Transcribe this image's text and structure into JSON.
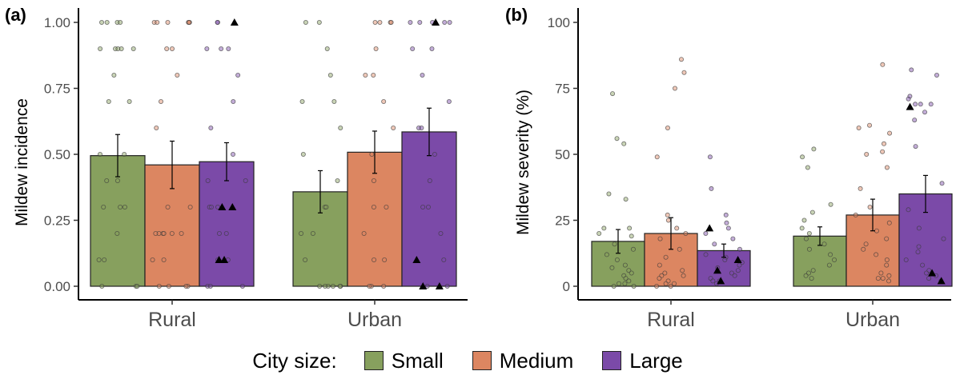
{
  "legend": {
    "title": "City size:",
    "items": [
      {
        "label": "Small",
        "color": "#87a05e"
      },
      {
        "label": "Medium",
        "color": "#dc8661"
      },
      {
        "label": "Large",
        "color": "#7b4aa8"
      }
    ]
  },
  "chart_data": [
    {
      "panel_label": "(a)",
      "type": "bar",
      "ylabel": "Mildew incidence",
      "xlabel": "",
      "ylim": [
        0,
        1.03
      ],
      "yticks": [
        0.0,
        0.25,
        0.5,
        0.75,
        1.0
      ],
      "ytick_labels": [
        "0.00",
        "0.25",
        "0.50",
        "0.75",
        "1.00"
      ],
      "categories": [
        "Rural",
        "Urban"
      ],
      "grid": false,
      "series": [
        {
          "name": "Small",
          "color": "#87a05e",
          "values": [
            0.495,
            0.358
          ],
          "error": [
            0.08,
            0.08
          ]
        },
        {
          "name": "Medium",
          "color": "#dc8661",
          "values": [
            0.46,
            0.508
          ],
          "error": [
            0.09,
            0.08
          ]
        },
        {
          "name": "Large",
          "color": "#7b4aa8",
          "values": [
            0.472,
            0.585
          ],
          "error": [
            0.072,
            0.09
          ]
        }
      ],
      "points": {
        "Rural": {
          "Small": [
            1.0,
            1.0,
            1.0,
            1.0,
            0.9,
            0.9,
            0.9,
            0.9,
            0.9,
            0.8,
            0.7,
            0.7,
            0.5,
            0.5,
            0.4,
            0.4,
            0.3,
            0.3,
            0.3,
            0.2,
            0.1,
            0.1,
            0.0,
            0.0,
            0.0
          ],
          "Medium": [
            1.0,
            1.0,
            1.0,
            1.0,
            1.0,
            1.0,
            0.9,
            0.9,
            0.8,
            0.7,
            0.6,
            0.3,
            0.3,
            0.2,
            0.2,
            0.2,
            0.2,
            0.2,
            0.2,
            0.1,
            0.1,
            0.0,
            0.0,
            0.0,
            0.0
          ],
          "Large": [
            1.0,
            1.0,
            0.9,
            0.9,
            0.9,
            0.8,
            0.7,
            0.6,
            0.5,
            0.4,
            0.4,
            0.3,
            0.3,
            0.3,
            0.2,
            0.2,
            0.1,
            0.1,
            0.0,
            0.0,
            0.0
          ]
        },
        "Urban": {
          "Small": [
            1.0,
            1.0,
            0.9,
            0.8,
            0.7,
            0.7,
            0.6,
            0.5,
            0.4,
            0.3,
            0.3,
            0.2,
            0.2,
            0.1,
            0.0,
            0.0,
            0.0,
            0.0,
            0.0,
            0.0
          ],
          "Medium": [
            1.0,
            1.0,
            1.0,
            1.0,
            0.9,
            0.8,
            0.8,
            0.7,
            0.6,
            0.5,
            0.4,
            0.3,
            0.3,
            0.2,
            0.1,
            0.1,
            0.0,
            0.0,
            0.0
          ],
          "Large": [
            1.0,
            1.0,
            1.0,
            1.0,
            1.0,
            0.9,
            0.9,
            0.8,
            0.7,
            0.6,
            0.6,
            0.5,
            0.4,
            0.3,
            0.3,
            0.2,
            0.1,
            0.0,
            0.0
          ]
        }
      },
      "triangles": {
        "Rural": {
          "Large": [
            1.0,
            0.3,
            0.3,
            0.1,
            0.1
          ]
        },
        "Urban": {
          "Large": [
            1.0,
            0.1,
            0.0,
            0.0
          ]
        }
      }
    },
    {
      "panel_label": "(b)",
      "type": "bar",
      "ylabel": "Mildew severity (%)",
      "xlabel": "",
      "ylim": [
        0,
        104
      ],
      "yticks": [
        0,
        25,
        50,
        75,
        100
      ],
      "ytick_labels": [
        "0",
        "25",
        "50",
        "75",
        "100"
      ],
      "categories": [
        "Rural",
        "Urban"
      ],
      "grid": false,
      "series": [
        {
          "name": "Small",
          "color": "#87a05e",
          "values": [
            17,
            19
          ],
          "error": [
            4.5,
            3.5
          ]
        },
        {
          "name": "Medium",
          "color": "#dc8661",
          "values": [
            20,
            27
          ],
          "error": [
            6,
            6
          ]
        },
        {
          "name": "Large",
          "color": "#7b4aa8",
          "values": [
            13.5,
            35
          ],
          "error": [
            2.5,
            7
          ]
        }
      ],
      "points": {
        "Rural": {
          "Small": [
            73,
            56,
            54,
            35,
            33,
            22,
            22,
            20,
            19,
            16,
            14,
            12,
            10,
            8,
            7,
            6,
            5,
            4,
            3,
            2,
            1,
            1,
            0,
            0
          ],
          "Medium": [
            86,
            81,
            75,
            60,
            49,
            27,
            25,
            22,
            20,
            18,
            14,
            11,
            8,
            6,
            5,
            4,
            4,
            3,
            2,
            1,
            1,
            0,
            0
          ],
          "Large": [
            49,
            37,
            27,
            24,
            22,
            20,
            18,
            16,
            14,
            12,
            11,
            10,
            9,
            8,
            7,
            6,
            5,
            4,
            3,
            2,
            2,
            1
          ]
        },
        "Urban": {
          "Small": [
            52,
            49,
            45,
            31,
            28,
            25,
            22,
            20,
            18,
            16,
            14,
            12,
            10,
            8,
            6,
            5,
            4,
            3
          ],
          "Medium": [
            84,
            61,
            60,
            58,
            54,
            51,
            50,
            45,
            37,
            30,
            27,
            24,
            21,
            18,
            16,
            14,
            12,
            10,
            8,
            5,
            4,
            3,
            3,
            2
          ],
          "Large": [
            82,
            80,
            72,
            71,
            69,
            69,
            69,
            66,
            63,
            53,
            39,
            29,
            22,
            18,
            15,
            13,
            10,
            8,
            6,
            5,
            4,
            3,
            2
          ]
        }
      },
      "triangles": {
        "Rural": {
          "Large": [
            22,
            10,
            6,
            2
          ]
        },
        "Urban": {
          "Large": [
            68,
            5,
            2
          ]
        }
      }
    }
  ]
}
